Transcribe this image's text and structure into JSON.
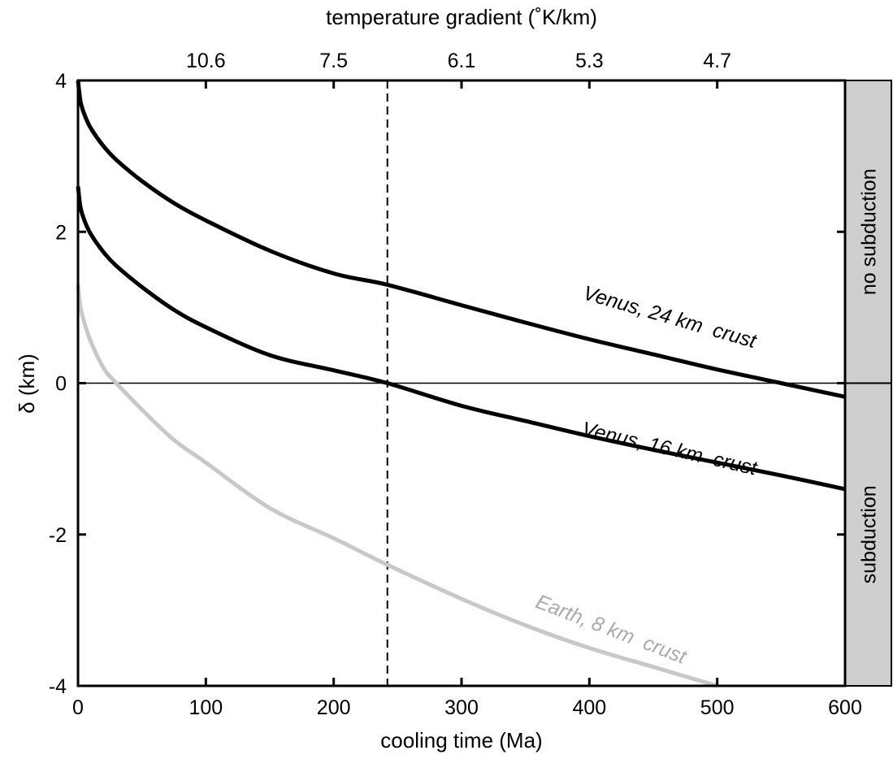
{
  "chart_data": {
    "type": "line",
    "xlabel": "cooling time (Ma)",
    "ylabel": "δ (km)",
    "top_xlabel": "temperature gradient (˚K/km)",
    "xlim": [
      0,
      600
    ],
    "ylim": [
      -4,
      4
    ],
    "x_ticks": [
      0,
      100,
      200,
      300,
      400,
      500,
      600
    ],
    "y_ticks": [
      -4,
      -2,
      0,
      2,
      4
    ],
    "top_axis_ticks": [
      {
        "label": "10.6",
        "x": 100
      },
      {
        "label": "7.5",
        "x": 200
      },
      {
        "label": "6.1",
        "x": 300
      },
      {
        "label": "5.3",
        "x": 400
      },
      {
        "label": "4.7",
        "x": 500
      }
    ],
    "grid": false,
    "reference_lines": [
      {
        "orientation": "horizontal",
        "y": 0,
        "style": "solid"
      },
      {
        "orientation": "vertical",
        "x": 242,
        "style": "dashed"
      }
    ],
    "side_panels": [
      {
        "label": "no subduction",
        "y_range": [
          0,
          4
        ]
      },
      {
        "label": "subduction",
        "y_range": [
          -4,
          0
        ]
      }
    ],
    "series": [
      {
        "name": "Venus, 24 km  crust",
        "color": "#000000",
        "x": [
          0,
          2,
          5,
          10,
          20,
          30,
          50,
          75,
          100,
          150,
          200,
          242,
          300,
          350,
          400,
          450,
          500,
          550,
          600
        ],
        "y": [
          4.0,
          3.72,
          3.55,
          3.37,
          3.13,
          2.95,
          2.67,
          2.38,
          2.15,
          1.75,
          1.45,
          1.3,
          1.03,
          0.8,
          0.58,
          0.38,
          0.18,
          0.0,
          -0.18
        ]
      },
      {
        "name": "Venus, 16 km  crust",
        "color": "#000000",
        "x": [
          0,
          2,
          5,
          10,
          20,
          30,
          50,
          75,
          100,
          150,
          200,
          242,
          300,
          350,
          400,
          450,
          500,
          550,
          600
        ],
        "y": [
          2.6,
          2.32,
          2.15,
          1.97,
          1.73,
          1.55,
          1.27,
          0.97,
          0.74,
          0.37,
          0.17,
          0.0,
          -0.3,
          -0.5,
          -0.7,
          -0.88,
          -1.05,
          -1.22,
          -1.4
        ]
      },
      {
        "name": "Earth, 8 km  crust",
        "color": "#c8c8c8",
        "x": [
          0,
          2,
          5,
          10,
          20,
          30,
          50,
          75,
          100,
          150,
          200,
          242,
          300,
          350,
          400,
          450,
          500
        ],
        "y": [
          1.3,
          1.0,
          0.8,
          0.55,
          0.2,
          0.0,
          -0.35,
          -0.75,
          -1.05,
          -1.65,
          -2.05,
          -2.4,
          -2.85,
          -3.2,
          -3.5,
          -3.75,
          -4.0
        ]
      }
    ]
  }
}
